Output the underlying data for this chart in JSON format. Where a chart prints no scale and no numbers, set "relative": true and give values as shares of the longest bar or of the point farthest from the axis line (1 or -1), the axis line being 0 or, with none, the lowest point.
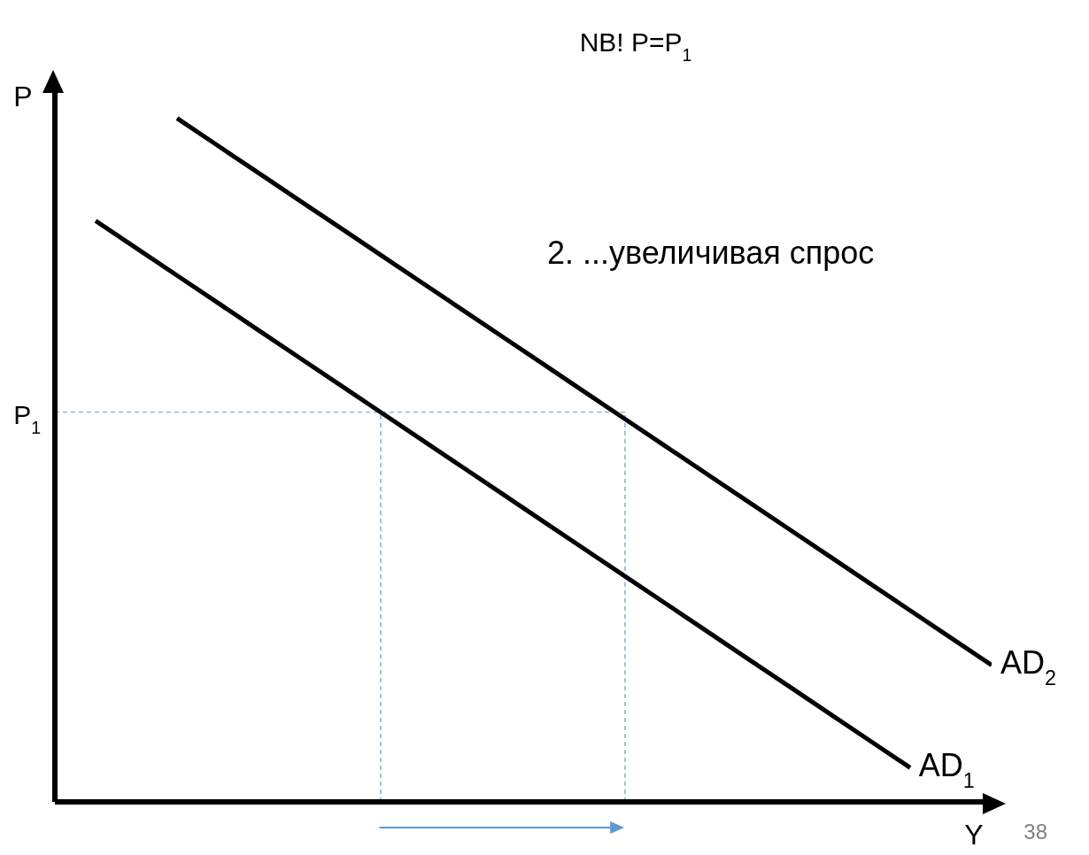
{
  "chart_data": {
    "type": "line",
    "title": "NB! P=P$_{1}$",
    "xlabel": "Y",
    "ylabel": "P",
    "relative": true,
    "marker": "none",
    "line_style": "solid",
    "grid": false,
    "categories": [
      null,
      null,
      null,
      null,
      null,
      null,
      null,
      null,
      null,
      null,
      null,
      null,
      null,
      null,
      null,
      null,
      null,
      null,
      null,
      null,
      null,
      null,
      null,
      null
    ],
    "series": [
      {
        "name": "AD$_{1}$",
        "color": "#000000",
        "values": [
          null,
          0.85,
          0.81,
          0.77,
          0.73,
          0.69,
          0.65,
          0.61,
          0.57,
          0.53,
          0.49,
          0.45,
          0.41,
          0.37,
          0.33,
          0.29,
          0.25,
          0.21,
          0.17,
          0.13,
          0.09,
          0.05,
          null,
          null
        ]
      },
      {
        "name": "AD$_{2}$",
        "color": "#000000",
        "values": [
          null,
          null,
          null,
          1.0,
          0.96,
          0.92,
          0.88,
          0.84,
          0.8,
          0.76,
          0.72,
          0.68,
          0.64,
          0.6,
          0.56,
          0.52,
          0.48,
          0.44,
          0.4,
          0.36,
          0.32,
          0.28,
          0.24,
          0.2
        ]
      }
    ],
    "ref_lines": [
      {
        "axis": "y",
        "value": 0.57,
        "label": "P$_{1}$",
        "color": "#5b9bd5",
        "line_style": "dashed"
      }
    ],
    "annotations": [
      "2. ...увеличивая спрос",
      "38"
    ]
  }
}
